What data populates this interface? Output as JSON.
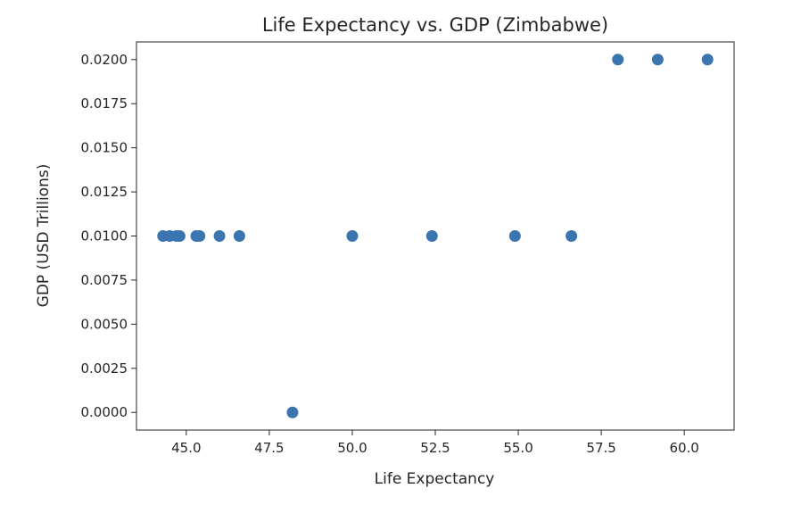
{
  "chart_data": {
    "type": "scatter",
    "title": "Life Expectancy vs. GDP (Zimbabwe)",
    "xlabel": "Life Expectancy",
    "ylabel": "GDP (USD Trillions)",
    "xlim": [
      43.5,
      61.5
    ],
    "ylim": [
      -0.001,
      0.021
    ],
    "xticks": [
      45.0,
      47.5,
      50.0,
      52.5,
      55.0,
      57.5,
      60.0
    ],
    "xtick_labels": [
      "45.0",
      "47.5",
      "50.0",
      "52.5",
      "55.0",
      "57.5",
      "60.0"
    ],
    "yticks": [
      0.0,
      0.0025,
      0.005,
      0.0075,
      0.01,
      0.0125,
      0.015,
      0.0175,
      0.02
    ],
    "ytick_labels": [
      "0.0000",
      "0.0025",
      "0.0050",
      "0.0075",
      "0.0100",
      "0.0125",
      "0.0150",
      "0.0175",
      "0.0200"
    ],
    "grid": false,
    "marker_color": "#3a75b0",
    "points": [
      {
        "x": 44.3,
        "y": 0.01
      },
      {
        "x": 44.5,
        "y": 0.01
      },
      {
        "x": 44.7,
        "y": 0.01
      },
      {
        "x": 44.8,
        "y": 0.01
      },
      {
        "x": 45.3,
        "y": 0.01
      },
      {
        "x": 45.4,
        "y": 0.01
      },
      {
        "x": 46.0,
        "y": 0.01
      },
      {
        "x": 46.6,
        "y": 0.01
      },
      {
        "x": 48.2,
        "y": 0.0
      },
      {
        "x": 50.0,
        "y": 0.01
      },
      {
        "x": 52.4,
        "y": 0.01
      },
      {
        "x": 54.9,
        "y": 0.01
      },
      {
        "x": 56.6,
        "y": 0.01
      },
      {
        "x": 58.0,
        "y": 0.02
      },
      {
        "x": 59.2,
        "y": 0.02
      },
      {
        "x": 60.7,
        "y": 0.02
      }
    ]
  }
}
